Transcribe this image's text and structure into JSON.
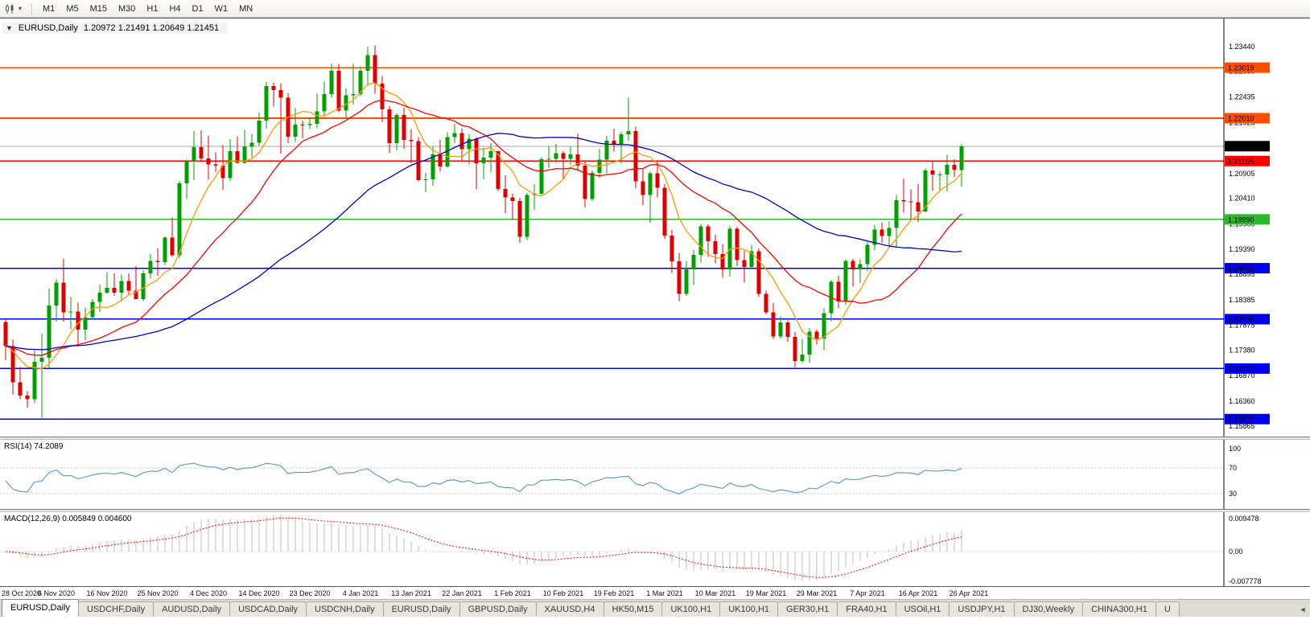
{
  "toolbar": {
    "timeframes": [
      "M1",
      "M5",
      "M15",
      "M30",
      "H1",
      "H4",
      "D1",
      "W1",
      "MN"
    ]
  },
  "chart": {
    "title_symbol": "EURUSD,Daily",
    "title_ohlc": "1.20972 1.21491 1.20649 1.21451",
    "collapse_glyph": "▼"
  },
  "chart_data": {
    "type": "candlestick",
    "symbol": "EURUSD",
    "timeframe": "Daily",
    "up_color": "#00a000",
    "down_color": "#e00000",
    "ohlc": [
      [
        1.1794,
        1.18,
        1.1718,
        1.1746
      ],
      [
        1.1746,
        1.1759,
        1.165,
        1.1674
      ],
      [
        1.1674,
        1.1704,
        1.164,
        1.1647
      ],
      [
        1.1647,
        1.1656,
        1.1623,
        1.164
      ],
      [
        1.164,
        1.174,
        1.1633,
        1.1715
      ],
      [
        1.1715,
        1.1771,
        1.1603,
        1.1723
      ],
      [
        1.1723,
        1.1861,
        1.1701,
        1.1827
      ],
      [
        1.1827,
        1.188,
        1.1795,
        1.1873
      ],
      [
        1.1873,
        1.192,
        1.1795,
        1.1813
      ],
      [
        1.1813,
        1.1845,
        1.178,
        1.1815
      ],
      [
        1.1815,
        1.1833,
        1.1745,
        1.1779
      ],
      [
        1.1779,
        1.1823,
        1.1758,
        1.1804
      ],
      [
        1.1804,
        1.184,
        1.1799,
        1.1834
      ],
      [
        1.1834,
        1.1869,
        1.1814,
        1.1853
      ],
      [
        1.1853,
        1.1894,
        1.185,
        1.1862
      ],
      [
        1.1862,
        1.1891,
        1.1846,
        1.1853
      ],
      [
        1.1853,
        1.1889,
        1.1835,
        1.1876
      ],
      [
        1.1876,
        1.1891,
        1.1849,
        1.1857
      ],
      [
        1.1857,
        1.1906,
        1.1839,
        1.184
      ],
      [
        1.184,
        1.1897,
        1.1836,
        1.1891
      ],
      [
        1.1891,
        1.193,
        1.1881,
        1.1916
      ],
      [
        1.1916,
        1.1941,
        1.1886,
        1.1914
      ],
      [
        1.1914,
        1.1965,
        1.1907,
        1.1963
      ],
      [
        1.1963,
        1.2003,
        1.1924,
        1.1927
      ],
      [
        1.1927,
        1.2076,
        1.1922,
        1.2071
      ],
      [
        1.2071,
        1.2118,
        1.204,
        1.2115
      ],
      [
        1.2115,
        1.2175,
        1.2077,
        1.2143
      ],
      [
        1.2143,
        1.2177,
        1.2117,
        1.2121
      ],
      [
        1.2121,
        1.2166,
        1.2079,
        1.2109
      ],
      [
        1.2109,
        1.2133,
        1.2094,
        1.2106
      ],
      [
        1.2106,
        1.2147,
        1.2058,
        1.2081
      ],
      [
        1.2081,
        1.2159,
        1.2076,
        1.2135
      ],
      [
        1.2135,
        1.2164,
        1.211,
        1.2112
      ],
      [
        1.2112,
        1.2178,
        1.211,
        1.2144
      ],
      [
        1.2144,
        1.217,
        1.2122,
        1.2152
      ],
      [
        1.2152,
        1.2212,
        1.2146,
        1.2196
      ],
      [
        1.2196,
        1.2273,
        1.218,
        1.2265
      ],
      [
        1.2265,
        1.2272,
        1.2224,
        1.2257
      ],
      [
        1.2257,
        1.2271,
        1.213,
        1.2242
      ],
      [
        1.2242,
        1.2251,
        1.2151,
        1.2164
      ],
      [
        1.2164,
        1.2222,
        1.2154,
        1.2188
      ],
      [
        1.2188,
        1.2196,
        1.2161,
        1.2187
      ],
      [
        1.2187,
        1.2201,
        1.2179,
        1.219
      ],
      [
        1.219,
        1.225,
        1.2181,
        1.2215
      ],
      [
        1.2215,
        1.2274,
        1.2205,
        1.2249
      ],
      [
        1.2249,
        1.231,
        1.2243,
        1.2296
      ],
      [
        1.2296,
        1.2309,
        1.2213,
        1.2216
      ],
      [
        1.2216,
        1.226,
        1.22,
        1.2247
      ],
      [
        1.2247,
        1.231,
        1.2228,
        1.2249
      ],
      [
        1.2249,
        1.2304,
        1.2245,
        1.2296
      ],
      [
        1.2296,
        1.2344,
        1.2266,
        1.2327
      ],
      [
        1.2327,
        1.2346,
        1.225,
        1.227
      ],
      [
        1.227,
        1.2285,
        1.2193,
        1.2219
      ],
      [
        1.2219,
        1.2225,
        1.2132,
        1.2151
      ],
      [
        1.2151,
        1.2211,
        1.2137,
        1.2207
      ],
      [
        1.2207,
        1.2223,
        1.214,
        1.2158
      ],
      [
        1.2158,
        1.2179,
        1.2111,
        1.2155
      ],
      [
        1.2155,
        1.2163,
        1.2075,
        1.2077
      ],
      [
        1.2077,
        1.2092,
        1.2053,
        1.2079
      ],
      [
        1.2079,
        1.2145,
        1.2066,
        1.2129
      ],
      [
        1.2129,
        1.2158,
        1.2095,
        1.2105
      ],
      [
        1.2105,
        1.2173,
        1.2102,
        1.2163
      ],
      [
        1.2163,
        1.219,
        1.2151,
        1.2171
      ],
      [
        1.2171,
        1.2181,
        1.2116,
        1.2139
      ],
      [
        1.2139,
        1.217,
        1.2109,
        1.216
      ],
      [
        1.216,
        1.2163,
        1.2059,
        1.2111
      ],
      [
        1.2111,
        1.2142,
        1.208,
        1.2122
      ],
      [
        1.2122,
        1.2151,
        1.2093,
        1.2135
      ],
      [
        1.2135,
        1.2136,
        1.2056,
        1.206
      ],
      [
        1.206,
        1.2087,
        1.2011,
        1.2043
      ],
      [
        1.2043,
        1.205,
        1.1999,
        1.2036
      ],
      [
        1.2036,
        1.2042,
        1.1952,
        1.1964
      ],
      [
        1.1964,
        1.2052,
        1.1958,
        1.2048
      ],
      [
        1.2048,
        1.2069,
        1.2018,
        1.205
      ],
      [
        1.205,
        1.2123,
        1.2048,
        1.2119
      ],
      [
        1.2119,
        1.2145,
        1.2101,
        1.212
      ],
      [
        1.212,
        1.215,
        1.2111,
        1.2131
      ],
      [
        1.2131,
        1.2135,
        1.208,
        1.212
      ],
      [
        1.212,
        1.2145,
        1.2108,
        1.2129
      ],
      [
        1.2129,
        1.217,
        1.2096,
        1.2106
      ],
      [
        1.2106,
        1.2114,
        1.2023,
        1.204
      ],
      [
        1.204,
        1.2097,
        1.2036,
        1.2092
      ],
      [
        1.2092,
        1.2139,
        1.2082,
        1.2118
      ],
      [
        1.2118,
        1.2166,
        1.209,
        1.2156
      ],
      [
        1.2156,
        1.218,
        1.2134,
        1.215
      ],
      [
        1.215,
        1.2174,
        1.211,
        1.2169
      ],
      [
        1.2169,
        1.2243,
        1.2155,
        1.2175
      ],
      [
        1.2175,
        1.2184,
        1.2061,
        1.2075
      ],
      [
        1.2075,
        1.2101,
        1.2027,
        1.2048
      ],
      [
        1.2048,
        1.2094,
        1.1992,
        1.2091
      ],
      [
        1.2091,
        1.2113,
        1.2043,
        1.2062
      ],
      [
        1.2062,
        1.2069,
        1.196,
        1.1967
      ],
      [
        1.1967,
        1.1978,
        1.1892,
        1.1915
      ],
      [
        1.1915,
        1.1932,
        1.1836,
        1.185
      ],
      [
        1.185,
        1.1916,
        1.1846,
        1.1899
      ],
      [
        1.1899,
        1.1938,
        1.1868,
        1.1928
      ],
      [
        1.1928,
        1.199,
        1.1913,
        1.1985
      ],
      [
        1.1985,
        1.1989,
        1.1924,
        1.1955
      ],
      [
        1.1955,
        1.1968,
        1.1911,
        1.193
      ],
      [
        1.193,
        1.195,
        1.1882,
        1.1899
      ],
      [
        1.1899,
        1.1986,
        1.1885,
        1.198
      ],
      [
        1.198,
        1.1984,
        1.1906,
        1.1918
      ],
      [
        1.1918,
        1.1936,
        1.1873,
        1.1904
      ],
      [
        1.1904,
        1.1948,
        1.1901,
        1.1935
      ],
      [
        1.1935,
        1.1941,
        1.1844,
        1.185
      ],
      [
        1.185,
        1.1857,
        1.1809,
        1.1813
      ],
      [
        1.1813,
        1.1832,
        1.176,
        1.1765
      ],
      [
        1.1765,
        1.1805,
        1.1761,
        1.1793
      ],
      [
        1.1793,
        1.1797,
        1.1755,
        1.1764
      ],
      [
        1.1764,
        1.1774,
        1.1704,
        1.1716
      ],
      [
        1.1716,
        1.176,
        1.1712,
        1.1729
      ],
      [
        1.1729,
        1.1782,
        1.1713,
        1.1775
      ],
      [
        1.1775,
        1.1779,
        1.1749,
        1.1761
      ],
      [
        1.1761,
        1.1821,
        1.1738,
        1.1812
      ],
      [
        1.1812,
        1.1878,
        1.1796,
        1.1874
      ],
      [
        1.1874,
        1.1886,
        1.1821,
        1.1835
      ],
      [
        1.1835,
        1.1919,
        1.1829,
        1.1916
      ],
      [
        1.1916,
        1.192,
        1.1865,
        1.1899
      ],
      [
        1.1899,
        1.1919,
        1.1872,
        1.191
      ],
      [
        1.191,
        1.1954,
        1.1896,
        1.1948
      ],
      [
        1.1948,
        1.1988,
        1.1938,
        1.1979
      ],
      [
        1.1979,
        1.1993,
        1.1952,
        1.1966
      ],
      [
        1.1966,
        1.1995,
        1.1945,
        1.1982
      ],
      [
        1.1982,
        1.2048,
        1.1942,
        1.2037
      ],
      [
        1.2037,
        1.208,
        1.2012,
        1.2035
      ],
      [
        1.2035,
        1.2059,
        1.1997,
        1.2033
      ],
      [
        1.2033,
        1.207,
        1.1994,
        1.2015
      ],
      [
        1.2015,
        1.2101,
        1.2013,
        1.2097
      ],
      [
        1.2097,
        1.2117,
        1.2056,
        1.2089
      ],
      [
        1.2089,
        1.2094,
        1.2055,
        1.2089
      ],
      [
        1.2089,
        1.2128,
        1.2055,
        1.2108
      ],
      [
        1.2108,
        1.2119,
        1.2084,
        1.2098
      ],
      [
        1.20972,
        1.21491,
        1.20649,
        1.21451
      ]
    ],
    "x_labels": [
      "28 Oct 2020",
      "6 Nov 2020",
      "16 Nov 2020",
      "25 Nov 2020",
      "4 Dec 2020",
      "14 Dec 2020",
      "23 Dec 2020",
      "4 Jan 2021",
      "13 Jan 2021",
      "22 Jan 2021",
      "1 Feb 2021",
      "10 Feb 2021",
      "19 Feb 2021",
      "1 Mar 2021",
      "10 Mar 2021",
      "19 Mar 2021",
      "29 Mar 2021",
      "7 Apr 2021",
      "16 Apr 2021",
      "26 Apr 2021"
    ],
    "x_label_step": 7,
    "price_axis": {
      "min": 1.1575,
      "max": 1.24,
      "labels": [
        "1.23440",
        "1.22950",
        "1.22435",
        "1.21925",
        "1.21415",
        "1.20905",
        "1.20410",
        "1.19900",
        "1.19390",
        "1.18895",
        "1.18385",
        "1.17875",
        "1.17380",
        "1.16870",
        "1.16360",
        "1.15865"
      ]
    },
    "h_lines": [
      {
        "value": 1.23019,
        "label": "1.23019",
        "color": "#ff4d00"
      },
      {
        "value": 1.2201,
        "label": "1.22010",
        "color": "#ff4d00"
      },
      {
        "value": 1.21155,
        "label": "1.21155",
        "color": "#ff0000"
      },
      {
        "value": 1.1999,
        "label": "1.19990",
        "color": "#2eb82e"
      },
      {
        "value": 1.19015,
        "label": "1.19015",
        "color": "#0000ee"
      },
      {
        "value": 1.17998,
        "label": "1.17998",
        "color": "#0000ee"
      },
      {
        "value": 1.17012,
        "label": "1.17012",
        "color": "#0000ee"
      },
      {
        "value": 1.16003,
        "label": "1.16003",
        "color": "#0000ee"
      }
    ],
    "current_price": {
      "value": 1.21451,
      "label": "1.21451",
      "line_color": "#aaaaaa",
      "box_color": "#000000"
    },
    "moving_averages": [
      {
        "period": 7,
        "color": "#ff9900"
      },
      {
        "period": 18,
        "color": "#ff0000"
      },
      {
        "period": 45,
        "color": "#0000cc"
      }
    ],
    "rsi": {
      "label": "RSI(14) 74.2089",
      "period": 14,
      "value": 74.2089,
      "levels": [
        "100",
        "70",
        "30"
      ],
      "color": "#6699cc"
    },
    "macd": {
      "label": "MACD(12,26,9) 0.005849 0.004600",
      "fast": 12,
      "slow": 26,
      "signal": 9,
      "values": [
        0.005849,
        0.0046
      ],
      "axis_labels": {
        "top": "0.009478",
        "zero": "0.00",
        "bottom": "-0.007778"
      },
      "scale_max": 0.0095,
      "scale_min": -0.0078,
      "histogram_color": "#bdbdbd",
      "signal_color": "#ff0000"
    }
  },
  "tabs": {
    "items": [
      {
        "label": "EURUSD,Daily",
        "active": true
      },
      {
        "label": "USDCHF,Daily",
        "active": false
      },
      {
        "label": "AUDUSD,Daily",
        "active": false
      },
      {
        "label": "USDCAD,Daily",
        "active": false
      },
      {
        "label": "USDCNH,Daily",
        "active": false
      },
      {
        "label": "EURUSD,Daily",
        "active": false
      },
      {
        "label": "GBPUSD,Daily",
        "active": false
      },
      {
        "label": "XAUUSD,H4",
        "active": false
      },
      {
        "label": "HK50,M15",
        "active": false
      },
      {
        "label": "UK100,H1",
        "active": false
      },
      {
        "label": "UK100,H1",
        "active": false
      },
      {
        "label": "GER30,H1",
        "active": false
      },
      {
        "label": "FRA40,H1",
        "active": false
      },
      {
        "label": "USOil,H1",
        "active": false
      },
      {
        "label": "USDJPY,H1",
        "active": false
      },
      {
        "label": "DJ30,Weekly",
        "active": false
      },
      {
        "label": "CHINA300,H1",
        "active": false
      },
      {
        "label": "U",
        "active": false
      }
    ],
    "scroll_glyph": "◄"
  }
}
